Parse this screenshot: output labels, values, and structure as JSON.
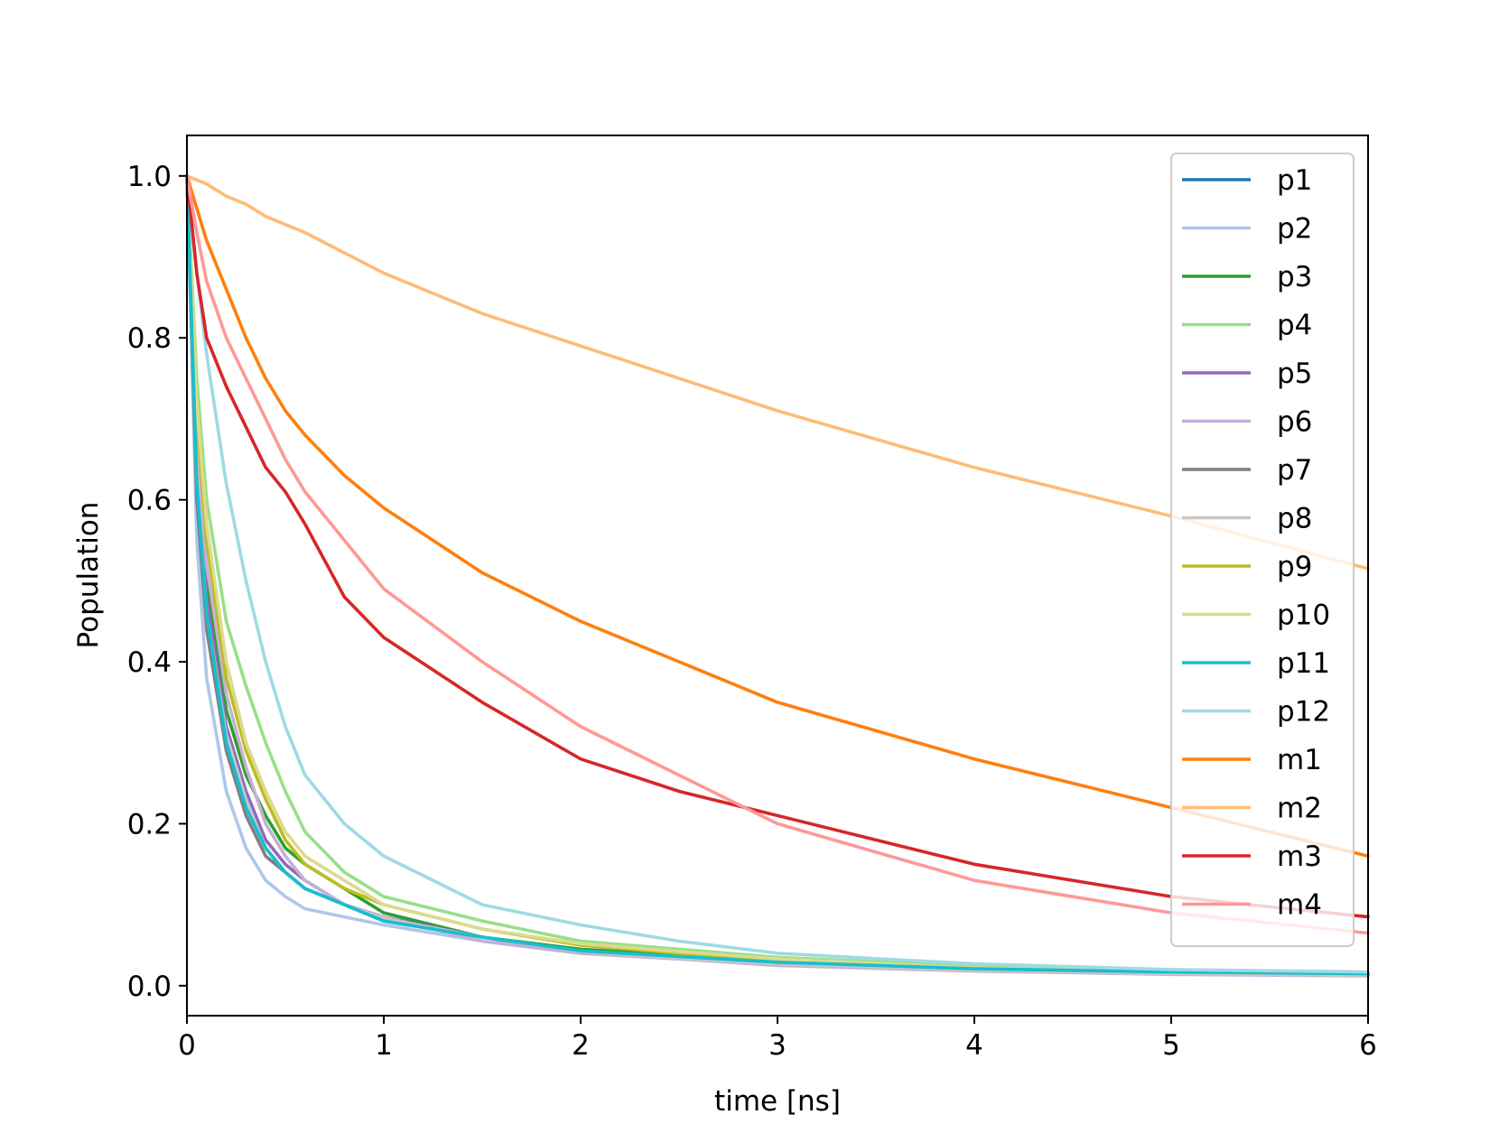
{
  "chart_data": {
    "type": "line",
    "title": "",
    "xlabel": "time [ns]",
    "ylabel": "Population",
    "xlim": [
      0,
      6
    ],
    "ylim": [
      -0.037,
      1.05
    ],
    "xticks": [
      "0",
      "1",
      "2",
      "3",
      "4",
      "5",
      "6"
    ],
    "yticks": [
      "0.0",
      "0.2",
      "0.4",
      "0.6",
      "0.8",
      "1.0"
    ],
    "grid": false,
    "legend_position": "top-right",
    "x": [
      0,
      0.05,
      0.1,
      0.2,
      0.3,
      0.4,
      0.5,
      0.6,
      0.8,
      1,
      1.5,
      2,
      2.5,
      3,
      4,
      5,
      6
    ],
    "series": [
      {
        "name": "p1",
        "color": "#1f77b4",
        "values": [
          1.0,
          0.62,
          0.45,
          0.31,
          0.22,
          0.17,
          0.14,
          0.12,
          0.1,
          0.08,
          0.06,
          0.04,
          0.035,
          0.03,
          0.02,
          0.017,
          0.015
        ]
      },
      {
        "name": "p2",
        "color": "#aec7e8",
        "values": [
          1.0,
          0.55,
          0.38,
          0.24,
          0.17,
          0.13,
          0.11,
          0.095,
          0.085,
          0.075,
          0.055,
          0.04,
          0.033,
          0.028,
          0.02,
          0.016,
          0.014
        ]
      },
      {
        "name": "p3",
        "color": "#2ca02c",
        "values": [
          1.0,
          0.66,
          0.5,
          0.34,
          0.26,
          0.21,
          0.17,
          0.15,
          0.12,
          0.09,
          0.06,
          0.045,
          0.038,
          0.03,
          0.02,
          0.016,
          0.014
        ]
      },
      {
        "name": "p4",
        "color": "#98df8a",
        "values": [
          1.0,
          0.75,
          0.6,
          0.45,
          0.37,
          0.3,
          0.24,
          0.19,
          0.14,
          0.11,
          0.08,
          0.055,
          0.045,
          0.035,
          0.024,
          0.018,
          0.016
        ]
      },
      {
        "name": "p5",
        "color": "#9467bd",
        "values": [
          1.0,
          0.64,
          0.48,
          0.32,
          0.24,
          0.18,
          0.15,
          0.13,
          0.1,
          0.085,
          0.06,
          0.042,
          0.034,
          0.028,
          0.019,
          0.015,
          0.013
        ]
      },
      {
        "name": "p6",
        "color": "#c5b0d5",
        "values": [
          1.0,
          0.68,
          0.52,
          0.36,
          0.27,
          0.2,
          0.16,
          0.13,
          0.1,
          0.085,
          0.055,
          0.04,
          0.033,
          0.025,
          0.018,
          0.014,
          0.012
        ]
      },
      {
        "name": "p7",
        "color": "#7f7f7f",
        "values": [
          1.0,
          0.6,
          0.44,
          0.29,
          0.21,
          0.16,
          0.14,
          0.12,
          0.1,
          0.08,
          0.06,
          0.042,
          0.035,
          0.028,
          0.02,
          0.016,
          0.014
        ]
      },
      {
        "name": "p8",
        "color": "#c7c7c7",
        "values": [
          1.0,
          0.63,
          0.46,
          0.31,
          0.23,
          0.17,
          0.14,
          0.12,
          0.1,
          0.083,
          0.06,
          0.042,
          0.034,
          0.027,
          0.019,
          0.015,
          0.013
        ]
      },
      {
        "name": "p9",
        "color": "#bcbd22",
        "values": [
          1.0,
          0.7,
          0.55,
          0.38,
          0.29,
          0.23,
          0.18,
          0.15,
          0.12,
          0.1,
          0.07,
          0.05,
          0.04,
          0.032,
          0.021,
          0.017,
          0.015
        ]
      },
      {
        "name": "p10",
        "color": "#dbdb8d",
        "values": [
          1.0,
          0.72,
          0.57,
          0.4,
          0.3,
          0.24,
          0.19,
          0.16,
          0.13,
          0.1,
          0.07,
          0.052,
          0.042,
          0.033,
          0.022,
          0.017,
          0.015
        ]
      },
      {
        "name": "p11",
        "color": "#17becf",
        "values": [
          1.0,
          0.62,
          0.46,
          0.3,
          0.22,
          0.17,
          0.14,
          0.12,
          0.1,
          0.08,
          0.06,
          0.043,
          0.036,
          0.029,
          0.021,
          0.017,
          0.015
        ]
      },
      {
        "name": "p12",
        "color": "#9edae5",
        "values": [
          1.0,
          0.88,
          0.78,
          0.62,
          0.5,
          0.4,
          0.32,
          0.26,
          0.2,
          0.16,
          0.1,
          0.075,
          0.055,
          0.04,
          0.027,
          0.02,
          0.017
        ]
      },
      {
        "name": "m1",
        "color": "#ff7f0e",
        "values": [
          1.0,
          0.96,
          0.92,
          0.86,
          0.8,
          0.75,
          0.71,
          0.68,
          0.63,
          0.59,
          0.51,
          0.45,
          0.4,
          0.35,
          0.28,
          0.22,
          0.16
        ]
      },
      {
        "name": "m2",
        "color": "#ffbb78",
        "values": [
          1.0,
          0.995,
          0.99,
          0.975,
          0.965,
          0.95,
          0.94,
          0.93,
          0.905,
          0.88,
          0.83,
          0.79,
          0.75,
          0.71,
          0.64,
          0.58,
          0.515
        ]
      },
      {
        "name": "m3",
        "color": "#d62728",
        "values": [
          1.0,
          0.88,
          0.8,
          0.74,
          0.69,
          0.64,
          0.61,
          0.57,
          0.48,
          0.43,
          0.35,
          0.28,
          0.24,
          0.21,
          0.15,
          0.11,
          0.085
        ]
      },
      {
        "name": "m4",
        "color": "#ff9896",
        "values": [
          1.0,
          0.93,
          0.87,
          0.8,
          0.75,
          0.7,
          0.65,
          0.61,
          0.55,
          0.49,
          0.4,
          0.32,
          0.26,
          0.2,
          0.13,
          0.09,
          0.065
        ]
      }
    ]
  }
}
